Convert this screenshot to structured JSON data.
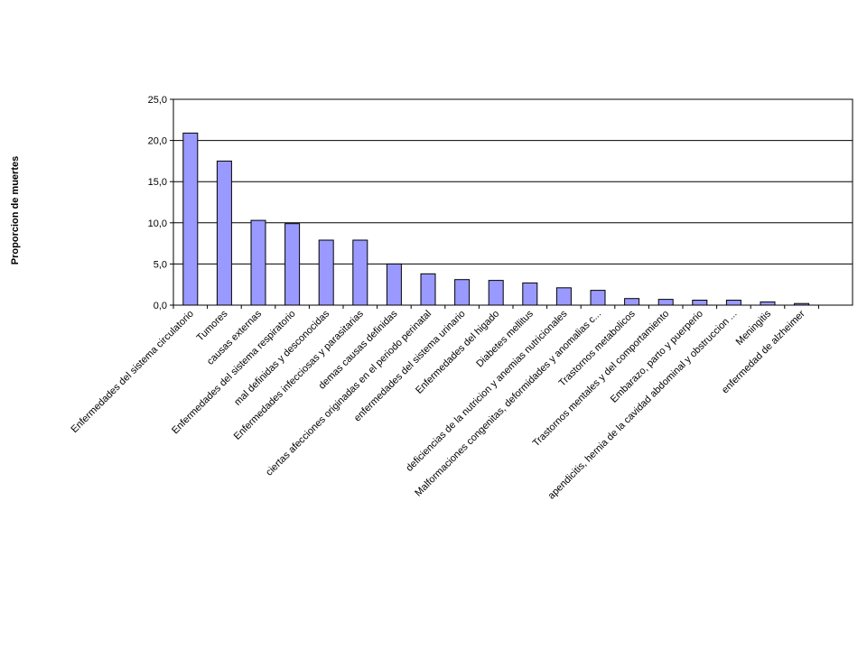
{
  "chart_data": {
    "type": "bar",
    "title": "",
    "xlabel": "",
    "ylabel": "Proporcion de muertes",
    "ylim": [
      0,
      25
    ],
    "yticks": [
      "0,0",
      "5,0",
      "10,0",
      "15,0",
      "20,0",
      "25,0"
    ],
    "grid": true,
    "legend": "none",
    "bar_color": "#9999ff",
    "categories": [
      "Enfermedades del sistema circulatorio",
      "Tumores",
      "causas externas",
      "Enfermedades del sistema respiratorio",
      "mal definidas y desconocidas",
      "Enfermedades infecciosas y parasitarias",
      "demas causas definidas",
      "ciertas afecciones originadas en el periodo perinatal",
      "enfermedades del sistema urinario",
      "Enfermedades del higado",
      "Diabetes mellitus",
      "deficiencias de la nutricion y anemias nutricionales",
      "Malformaciones congenitas, deformidades y anomalias c...",
      "Trastornos metabolicos",
      "Trastornos mentales y del comportamiento",
      "Embarazo, parto y puerperio",
      "apendicitis, hernia de la cavidad abdominal y obstruccion ...",
      "Meningitis",
      "enfermedad de alzheimer",
      ""
    ],
    "values": [
      20.9,
      17.5,
      10.3,
      9.9,
      7.9,
      7.9,
      5.0,
      3.8,
      3.1,
      3.0,
      2.7,
      2.1,
      1.8,
      0.8,
      0.7,
      0.6,
      0.6,
      0.4,
      0.2,
      0
    ]
  }
}
